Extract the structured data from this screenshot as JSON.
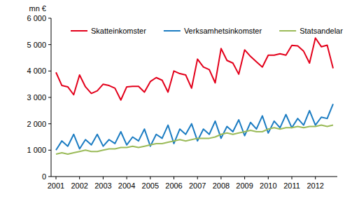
{
  "chart_data": {
    "type": "line",
    "y_label": "mn €",
    "categories": [
      "2001",
      null,
      null,
      null,
      "2002",
      null,
      null,
      null,
      "2003",
      null,
      null,
      null,
      "2004",
      null,
      null,
      null,
      "2005",
      null,
      null,
      null,
      "2006",
      null,
      null,
      null,
      "2007",
      null,
      null,
      null,
      "2008",
      null,
      null,
      null,
      "2009",
      null,
      null,
      null,
      "2010",
      null,
      null,
      null,
      "2011",
      null,
      null,
      null,
      "2012",
      null,
      null,
      null
    ],
    "series": [
      {
        "name": "Skatteinkomster",
        "color": "#e3001b",
        "values": [
          3950,
          3450,
          3400,
          3100,
          3850,
          3400,
          3150,
          3250,
          3500,
          3450,
          3350,
          2900,
          3400,
          3420,
          3420,
          3200,
          3600,
          3750,
          3650,
          3200,
          4000,
          3900,
          3850,
          3350,
          4450,
          4150,
          4050,
          3550,
          4850,
          4400,
          4300,
          3880,
          4800,
          4550,
          4350,
          4150,
          4600,
          4600,
          4650,
          4600,
          4970,
          4950,
          4750,
          4300,
          5250,
          4920,
          4980,
          4100
        ]
      },
      {
        "name": "Verksamhetsinkomster",
        "color": "#1b7cc2",
        "values": [
          1000,
          1350,
          1150,
          1600,
          1050,
          1400,
          1200,
          1600,
          1150,
          1400,
          1250,
          1700,
          1200,
          1500,
          1350,
          1800,
          1150,
          1600,
          1450,
          1950,
          1250,
          1800,
          1600,
          2000,
          1350,
          1800,
          1600,
          2100,
          1450,
          1900,
          1700,
          2150,
          1550,
          2050,
          1800,
          2300,
          1650,
          2100,
          1850,
          2350,
          1850,
          2200,
          1950,
          2500,
          1950,
          2250,
          2200,
          2750
        ]
      },
      {
        "name": "Statsandelar",
        "color": "#9bbb59",
        "values": [
          850,
          900,
          850,
          900,
          950,
          1000,
          950,
          950,
          1000,
          1050,
          1050,
          1100,
          1100,
          1150,
          1100,
          1150,
          1200,
          1250,
          1250,
          1300,
          1350,
          1400,
          1350,
          1400,
          1450,
          1450,
          1450,
          1500,
          1600,
          1650,
          1600,
          1650,
          1700,
          1750,
          1700,
          1700,
          1800,
          1850,
          1800,
          1850,
          1850,
          1900,
          1850,
          1900,
          1900,
          1950,
          1900,
          1950
        ]
      }
    ],
    "ylim": [
      0,
      6000
    ],
    "yticks": [
      0,
      {
        "value": 1000,
        "label": "1 000"
      },
      {
        "value": 2000,
        "label": "2 000"
      },
      {
        "value": 3000,
        "label": "3 000"
      },
      {
        "value": 4000,
        "label": "4 000"
      },
      {
        "value": 5000,
        "label": "5 000"
      },
      {
        "value": 6000,
        "label": "6 000"
      }
    ],
    "grid": false,
    "legend": "top"
  }
}
